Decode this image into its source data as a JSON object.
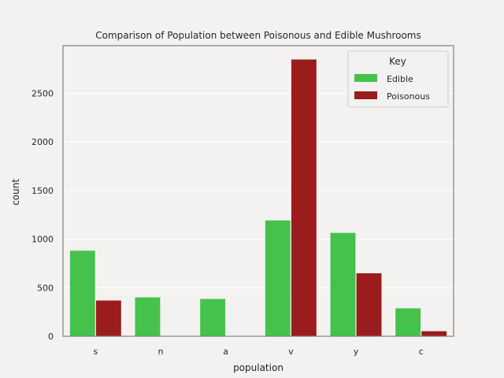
{
  "chart_data": {
    "type": "bar",
    "title": "Comparison of Population between Poisonous and Edible Mushrooms",
    "xlabel": "population",
    "ylabel": "count",
    "categories": [
      "s",
      "n",
      "a",
      "v",
      "y",
      "c"
    ],
    "series": [
      {
        "name": "Edible",
        "values": [
          880,
          400,
          384,
          1192,
          1064,
          288
        ],
        "color": "#45c24c"
      },
      {
        "name": "Poisonous",
        "values": [
          368,
          0,
          0,
          2848,
          648,
          52
        ],
        "color": "#9b1c1c"
      }
    ],
    "yticks": [
      0,
      500,
      1000,
      1500,
      2000,
      2500
    ],
    "ylim": [
      0,
      2990
    ],
    "grid": true,
    "legend": {
      "title": "Key",
      "placement": "top-right"
    }
  },
  "colors": {
    "background": "#f4f2f0",
    "grid": "#ffffff",
    "frame": "#808080"
  }
}
